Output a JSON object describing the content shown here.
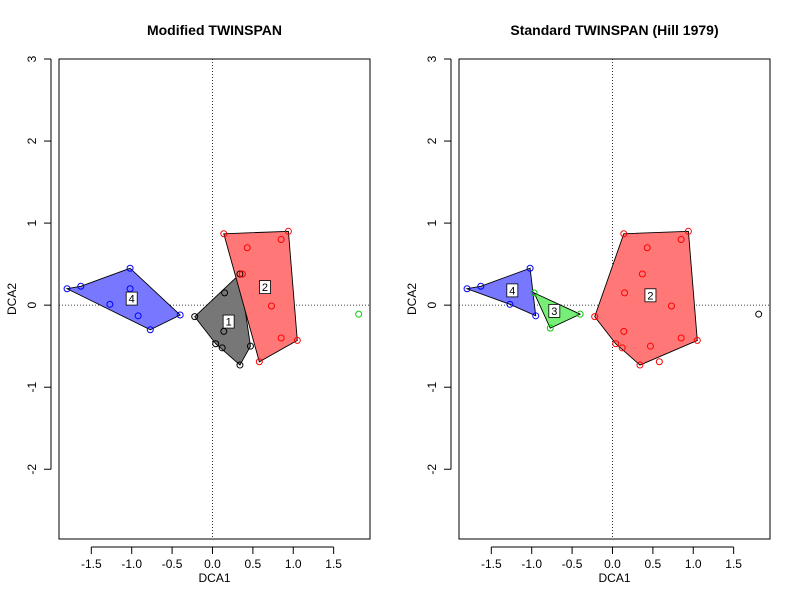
{
  "chart_data": [
    {
      "type": "scatter",
      "title": "Modified TWINSPAN",
      "xlabel": "DCA1",
      "ylabel": "DCA2",
      "xlim": [
        -1.9,
        1.95
      ],
      "ylim": [
        -2.85,
        3.0
      ],
      "xticks": [
        -1.5,
        -1.0,
        -0.5,
        0.0,
        0.5,
        1.0,
        1.5
      ],
      "xtick_labels": [
        "-1.5",
        "-1.0",
        "-0.5",
        "0.0",
        "0.5",
        "1.0",
        "1.5"
      ],
      "yticks": [
        -2,
        -1,
        0,
        1,
        2,
        3
      ],
      "ytick_labels": [
        "-2",
        "-1",
        "0",
        "1",
        "2",
        "3"
      ],
      "reference_lines": {
        "x": 0,
        "y": 0,
        "style": "dotted"
      },
      "groups": [
        {
          "label": "4",
          "color": "#0000ff",
          "fill": "#7777ff",
          "label_pos": [
            -1.0,
            0.08
          ],
          "hull": [
            [
              -1.8,
              0.2
            ],
            [
              -1.63,
              0.23
            ],
            [
              -1.02,
              0.45
            ],
            [
              -0.4,
              -0.12
            ],
            [
              -0.77,
              -0.3
            ]
          ],
          "points": [
            [
              -1.8,
              0.2
            ],
            [
              -1.63,
              0.23
            ],
            [
              -1.02,
              0.45
            ],
            [
              -1.02,
              0.2
            ],
            [
              -1.27,
              0.01
            ],
            [
              -0.92,
              -0.13
            ],
            [
              -0.77,
              -0.3
            ],
            [
              -0.4,
              -0.12
            ]
          ]
        },
        {
          "label": "1",
          "color": "#000000",
          "fill": "#777777",
          "label_pos": [
            0.2,
            -0.2
          ],
          "hull": [
            [
              -0.22,
              -0.14
            ],
            [
              0.34,
              0.38
            ],
            [
              0.47,
              -0.5
            ],
            [
              0.34,
              -0.73
            ],
            [
              0.04,
              -0.47
            ]
          ],
          "points": [
            [
              -0.22,
              -0.14
            ],
            [
              0.15,
              0.15
            ],
            [
              0.34,
              0.38
            ],
            [
              0.14,
              -0.32
            ],
            [
              0.47,
              -0.5
            ],
            [
              0.34,
              -0.73
            ],
            [
              0.04,
              -0.47
            ],
            [
              0.12,
              -0.52
            ]
          ]
        },
        {
          "label": "2",
          "color": "#ff0000",
          "fill": "#ff7777",
          "label_pos": [
            0.65,
            0.22
          ],
          "hull": [
            [
              0.14,
              0.87
            ],
            [
              0.94,
              0.9
            ],
            [
              1.05,
              -0.43
            ],
            [
              0.58,
              -0.69
            ]
          ],
          "points": [
            [
              0.14,
              0.87
            ],
            [
              0.94,
              0.9
            ],
            [
              0.85,
              0.8
            ],
            [
              0.43,
              0.7
            ],
            [
              0.37,
              0.38
            ],
            [
              0.73,
              -0.01
            ],
            [
              0.85,
              -0.4
            ],
            [
              1.05,
              -0.43
            ],
            [
              0.58,
              -0.69
            ]
          ]
        },
        {
          "label": "",
          "color": "#00cc00",
          "fill": "none",
          "label_pos": null,
          "hull": [],
          "points": [
            [
              1.81,
              -0.11
            ]
          ]
        }
      ]
    },
    {
      "type": "scatter",
      "title": "Standard TWINSPAN (Hill 1979)",
      "xlabel": "DCA1",
      "ylabel": "DCA2",
      "xlim": [
        -1.9,
        1.95
      ],
      "ylim": [
        -2.85,
        3.0
      ],
      "xticks": [
        -1.5,
        -1.0,
        -0.5,
        0.0,
        0.5,
        1.0,
        1.5
      ],
      "xtick_labels": [
        "-1.5",
        "-1.0",
        "-0.5",
        "0.0",
        "0.5",
        "1.0",
        "1.5"
      ],
      "yticks": [
        -2,
        -1,
        0,
        1,
        2,
        3
      ],
      "ytick_labels": [
        "-2",
        "-1",
        "0",
        "1",
        "2",
        "3"
      ],
      "reference_lines": {
        "x": 0,
        "y": 0,
        "style": "dotted"
      },
      "groups": [
        {
          "label": "4",
          "color": "#0000ff",
          "fill": "#7777ff",
          "label_pos": [
            -1.24,
            0.18
          ],
          "hull": [
            [
              -1.8,
              0.2
            ],
            [
              -1.63,
              0.23
            ],
            [
              -1.02,
              0.45
            ],
            [
              -0.95,
              -0.13
            ],
            [
              -1.27,
              0.01
            ]
          ],
          "points": [
            [
              -1.8,
              0.2
            ],
            [
              -1.63,
              0.23
            ],
            [
              -1.02,
              0.45
            ],
            [
              -1.27,
              0.01
            ],
            [
              -0.95,
              -0.13
            ]
          ]
        },
        {
          "label": "3",
          "color": "#00cc00",
          "fill": "#77ee77",
          "label_pos": [
            -0.72,
            -0.07
          ],
          "hull": [
            [
              -0.97,
              0.15
            ],
            [
              -0.4,
              -0.11
            ],
            [
              -0.77,
              -0.28
            ]
          ],
          "points": [
            [
              -0.97,
              0.15
            ],
            [
              -0.4,
              -0.11
            ],
            [
              -0.77,
              -0.28
            ]
          ]
        },
        {
          "label": "2",
          "color": "#ff0000",
          "fill": "#ff7777",
          "label_pos": [
            0.47,
            0.12
          ],
          "hull": [
            [
              0.14,
              0.87
            ],
            [
              0.94,
              0.9
            ],
            [
              1.05,
              -0.43
            ],
            [
              0.34,
              -0.73
            ],
            [
              0.04,
              -0.47
            ],
            [
              -0.22,
              -0.14
            ]
          ],
          "points": [
            [
              0.14,
              0.87
            ],
            [
              0.94,
              0.9
            ],
            [
              0.85,
              0.8
            ],
            [
              0.43,
              0.7
            ],
            [
              0.37,
              0.38
            ],
            [
              0.15,
              0.15
            ],
            [
              0.73,
              -0.01
            ],
            [
              0.14,
              -0.32
            ],
            [
              0.85,
              -0.4
            ],
            [
              1.05,
              -0.43
            ],
            [
              0.58,
              -0.69
            ],
            [
              0.34,
              -0.73
            ],
            [
              0.04,
              -0.47
            ],
            [
              0.12,
              -0.52
            ],
            [
              0.47,
              -0.5
            ],
            [
              -0.22,
              -0.14
            ]
          ]
        },
        {
          "label": "",
          "color": "#000000",
          "fill": "none",
          "label_pos": null,
          "hull": [],
          "points": [
            [
              1.81,
              -0.11
            ]
          ]
        }
      ]
    }
  ]
}
